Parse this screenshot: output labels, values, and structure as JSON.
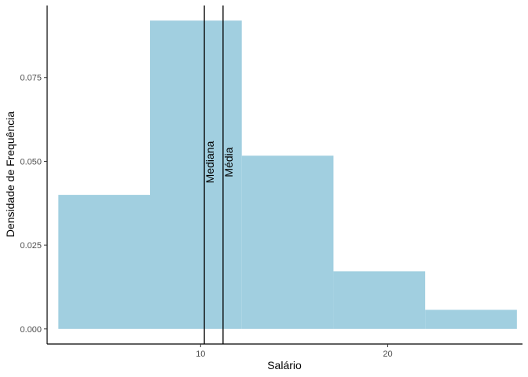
{
  "chart_data": {
    "type": "histogram",
    "xlabel": "Salário",
    "ylabel": "Densidade de Frequência",
    "xlim": [
      1.8,
      27.2
    ],
    "ylim": [
      -0.0045,
      0.0965
    ],
    "x_ticks": [
      10,
      20
    ],
    "x_tick_labels": [
      "10",
      "20"
    ],
    "y_ticks": [
      0.0,
      0.025,
      0.05,
      0.075
    ],
    "y_tick_labels": [
      "0.000",
      "0.025",
      "0.050",
      "0.075"
    ],
    "bins": [
      {
        "start": 2.4,
        "end": 7.3,
        "density": 0.04
      },
      {
        "start": 7.3,
        "end": 12.2,
        "density": 0.092
      },
      {
        "start": 12.2,
        "end": 17.1,
        "density": 0.0517
      },
      {
        "start": 17.1,
        "end": 22.0,
        "density": 0.0172
      },
      {
        "start": 22.0,
        "end": 26.9,
        "density": 0.0057
      }
    ],
    "bar_color": "#a1cfe0",
    "reference_lines": [
      {
        "label": "Mediana",
        "x": 10.2
      },
      {
        "label": "Média",
        "x": 11.2
      }
    ],
    "grid": false
  }
}
